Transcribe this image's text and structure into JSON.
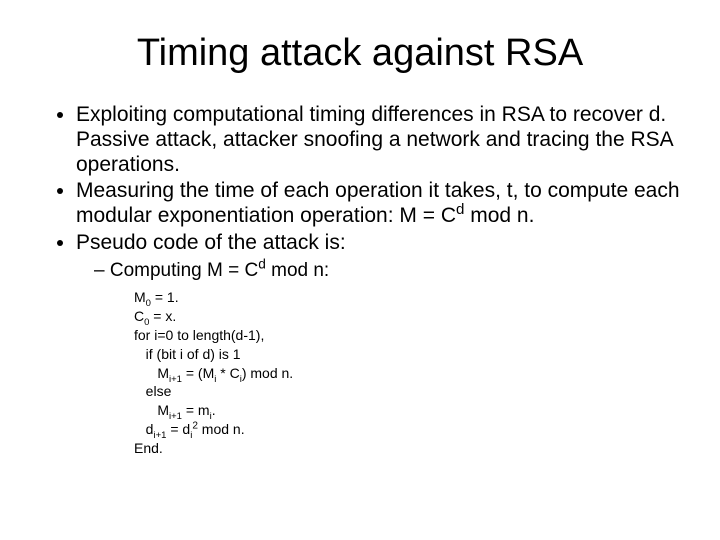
{
  "title": "Timing attack against RSA",
  "bullets": {
    "b1": "Exploiting computational timing differences in RSA to recover d. Passive attack, attacker snoofing a network and tracing the RSA operations.",
    "b2_pre": "Measuring the time of each operation it takes, t, to compute each modular exponentiation operation: M = C",
    "b2_sup": "d",
    "b2_post": " mod n.",
    "b3": "Pseudo code of the attack is:"
  },
  "sub": {
    "s1_pre": "Computing M = C",
    "s1_sup": "d",
    "s1_post": " mod n:"
  },
  "code": {
    "l1_a": "M",
    "l1_sub": "0",
    "l1_b": " = 1.",
    "l2_a": "C",
    "l2_sub": "0",
    "l2_b": " = x.",
    "l3": "for i=0 to length(d-1),",
    "l4": "   if (bit i of d) is 1",
    "l5_a": "      M",
    "l5_sub1": "i+1",
    "l5_b": " = (M",
    "l5_sub2": "i",
    "l5_c": " * C",
    "l5_sub3": "i",
    "l5_d": ") mod n.",
    "l6": "   else",
    "l7_a": "      M",
    "l7_sub1": "i+1",
    "l7_b": " = m",
    "l7_sub2": "i",
    "l7_c": ".",
    "l8_a": "   d",
    "l8_sub1": "i+1",
    "l8_b": " = d",
    "l8_sub2": "i",
    "l8_sup": "2",
    "l8_c": " mod n.",
    "l9": "End."
  }
}
